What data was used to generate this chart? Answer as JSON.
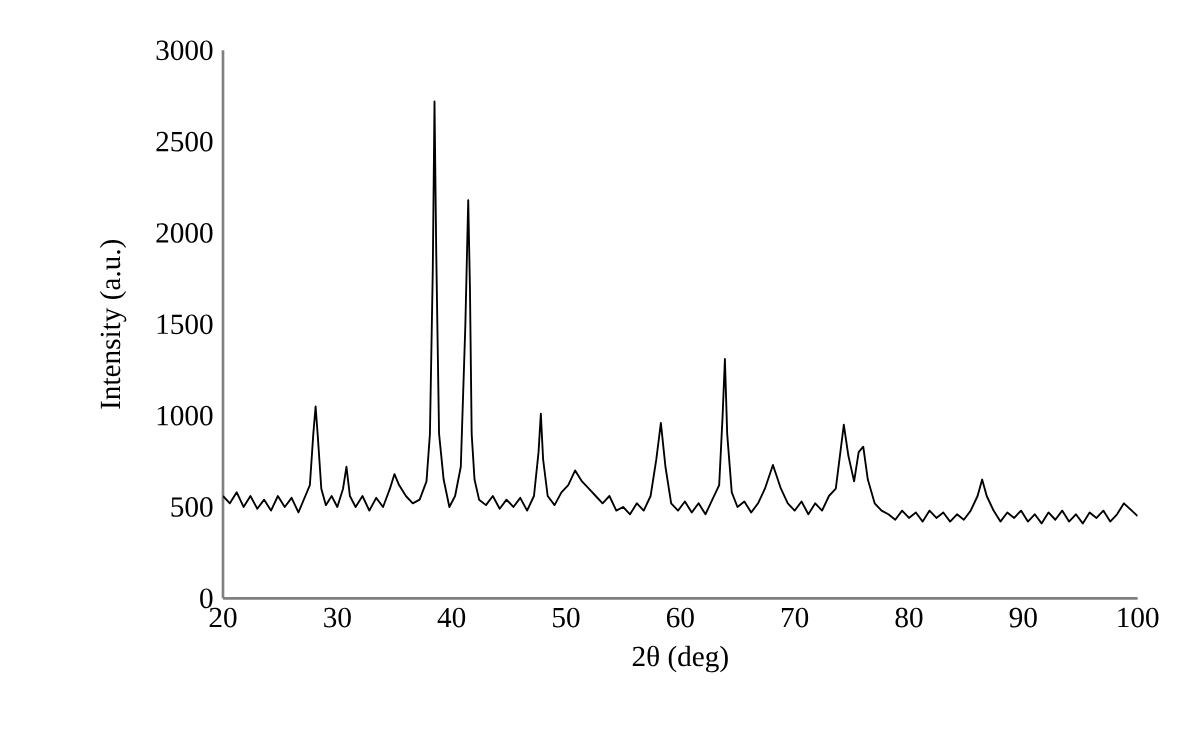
{
  "chart_data": {
    "type": "line",
    "xlabel": "2θ (deg)",
    "ylabel": "Intensity (a.u.)",
    "xlim": [
      20,
      100
    ],
    "ylim": [
      0,
      3000
    ],
    "xticks": [
      20,
      30,
      40,
      50,
      60,
      70,
      80,
      90,
      100
    ],
    "yticks": [
      0,
      500,
      1000,
      1500,
      2000,
      2500,
      3000
    ],
    "marker": "none",
    "line_style": "solid",
    "series": [
      {
        "color": "#000000",
        "x": [
          20,
          20.6,
          21.2,
          21.8,
          22.4,
          23,
          23.6,
          24.2,
          24.8,
          25.4,
          26,
          26.6,
          27.2,
          27.6,
          27.9,
          28.1,
          28.3,
          28.6,
          29,
          29.5,
          30,
          30.5,
          30.8,
          31.1,
          31.6,
          32.2,
          32.8,
          33.4,
          34,
          34.6,
          35,
          35.4,
          36,
          36.6,
          37.2,
          37.8,
          38.1,
          38.35,
          38.5,
          38.65,
          38.9,
          39.3,
          39.8,
          40.3,
          40.8,
          41.2,
          41.45,
          41.6,
          41.75,
          42,
          42.4,
          43,
          43.6,
          44.2,
          44.8,
          45.4,
          46,
          46.6,
          47.2,
          47.6,
          47.8,
          48,
          48.4,
          49,
          49.6,
          50.2,
          50.8,
          51.4,
          52,
          52.6,
          53.2,
          53.8,
          54.4,
          55,
          55.6,
          56.2,
          56.8,
          57.4,
          57.9,
          58.3,
          58.7,
          59.2,
          59.8,
          60.4,
          61,
          61.6,
          62.2,
          62.8,
          63.4,
          63.7,
          63.9,
          64.1,
          64.5,
          65,
          65.6,
          66.2,
          66.8,
          67.4,
          68.1,
          68.8,
          69.4,
          70,
          70.6,
          71.2,
          71.8,
          72.4,
          73,
          73.6,
          74,
          74.3,
          74.7,
          75.2,
          75.6,
          76,
          76.4,
          77,
          77.6,
          78.2,
          78.8,
          79.4,
          80,
          80.6,
          81.2,
          81.8,
          82.4,
          83,
          83.6,
          84.2,
          84.8,
          85.4,
          86,
          86.4,
          86.8,
          87.4,
          88,
          88.6,
          89.2,
          89.8,
          90.4,
          91,
          91.6,
          92.2,
          92.8,
          93.4,
          94,
          94.6,
          95.2,
          95.8,
          96.4,
          97,
          97.6,
          98.2,
          98.8,
          100
        ],
        "values": [
          560,
          520,
          580,
          500,
          560,
          490,
          540,
          480,
          560,
          500,
          550,
          470,
          560,
          620,
          900,
          1050,
          880,
          600,
          510,
          560,
          500,
          600,
          720,
          560,
          500,
          560,
          480,
          550,
          500,
          600,
          680,
          620,
          560,
          520,
          540,
          640,
          900,
          1800,
          2720,
          1900,
          900,
          650,
          500,
          560,
          720,
          1500,
          2180,
          1700,
          900,
          650,
          540,
          510,
          560,
          490,
          540,
          500,
          550,
          480,
          560,
          800,
          1010,
          760,
          560,
          510,
          580,
          620,
          700,
          640,
          600,
          560,
          520,
          560,
          480,
          500,
          460,
          520,
          480,
          560,
          760,
          960,
          720,
          520,
          480,
          530,
          470,
          520,
          460,
          540,
          620,
          1000,
          1310,
          900,
          580,
          500,
          530,
          470,
          520,
          600,
          730,
          600,
          520,
          480,
          530,
          460,
          520,
          480,
          560,
          600,
          800,
          950,
          780,
          640,
          800,
          830,
          650,
          520,
          480,
          460,
          430,
          480,
          440,
          470,
          420,
          480,
          440,
          470,
          420,
          460,
          430,
          480,
          560,
          650,
          560,
          480,
          420,
          470,
          440,
          480,
          420,
          460,
          410,
          470,
          430,
          480,
          420,
          460,
          410,
          470,
          440,
          480,
          420,
          460,
          520,
          450
        ]
      }
    ]
  }
}
